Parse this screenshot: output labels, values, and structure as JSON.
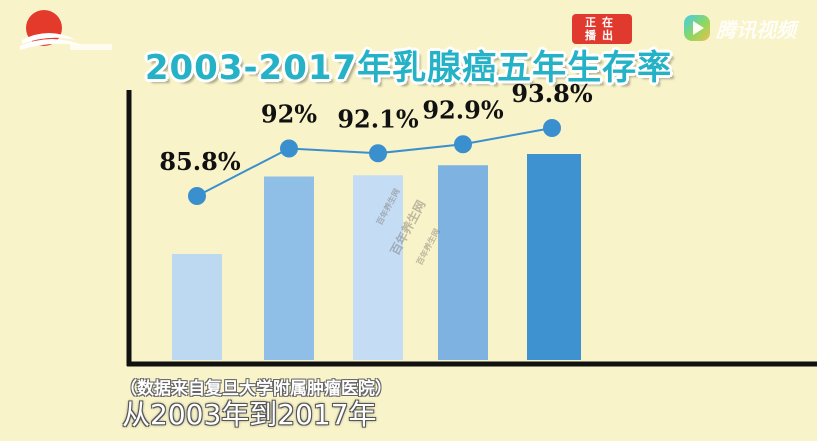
{
  "header": {
    "title": "2003-2017年乳腺癌五年生存率",
    "live_badge": "正在播出",
    "tv_logo_text": "腾讯视频"
  },
  "watermark": {
    "small": "百年养生网",
    "large": "百年养生网"
  },
  "footer": {
    "source_note": "（数据来自复旦大学附属肿瘤医院）",
    "subtitle": "从2003年到2017年"
  },
  "colors": {
    "background": "#f8f3c8",
    "title_fill": "#25b2c6",
    "line": "#3a8fcf",
    "bar_colors": [
      "#bcd9f1",
      "#8fbee6",
      "#c4ddf4",
      "#7eb2e0",
      "#3d92cf"
    ],
    "badge": "#e03a2f"
  },
  "chart_data": {
    "type": "bar",
    "title": "2003-2017年乳腺癌五年生存率",
    "categories": [
      "",
      "",
      "",
      "",
      ""
    ],
    "values": [
      85.8,
      92,
      92.1,
      92.9,
      93.8
    ],
    "value_labels": [
      "85.8%",
      "92%",
      "92.1%",
      "92.9%",
      "93.8%"
    ],
    "overlay": "line connecting values with circular markers",
    "xlabel": "",
    "ylabel": "",
    "grid": false,
    "legend": "none"
  }
}
